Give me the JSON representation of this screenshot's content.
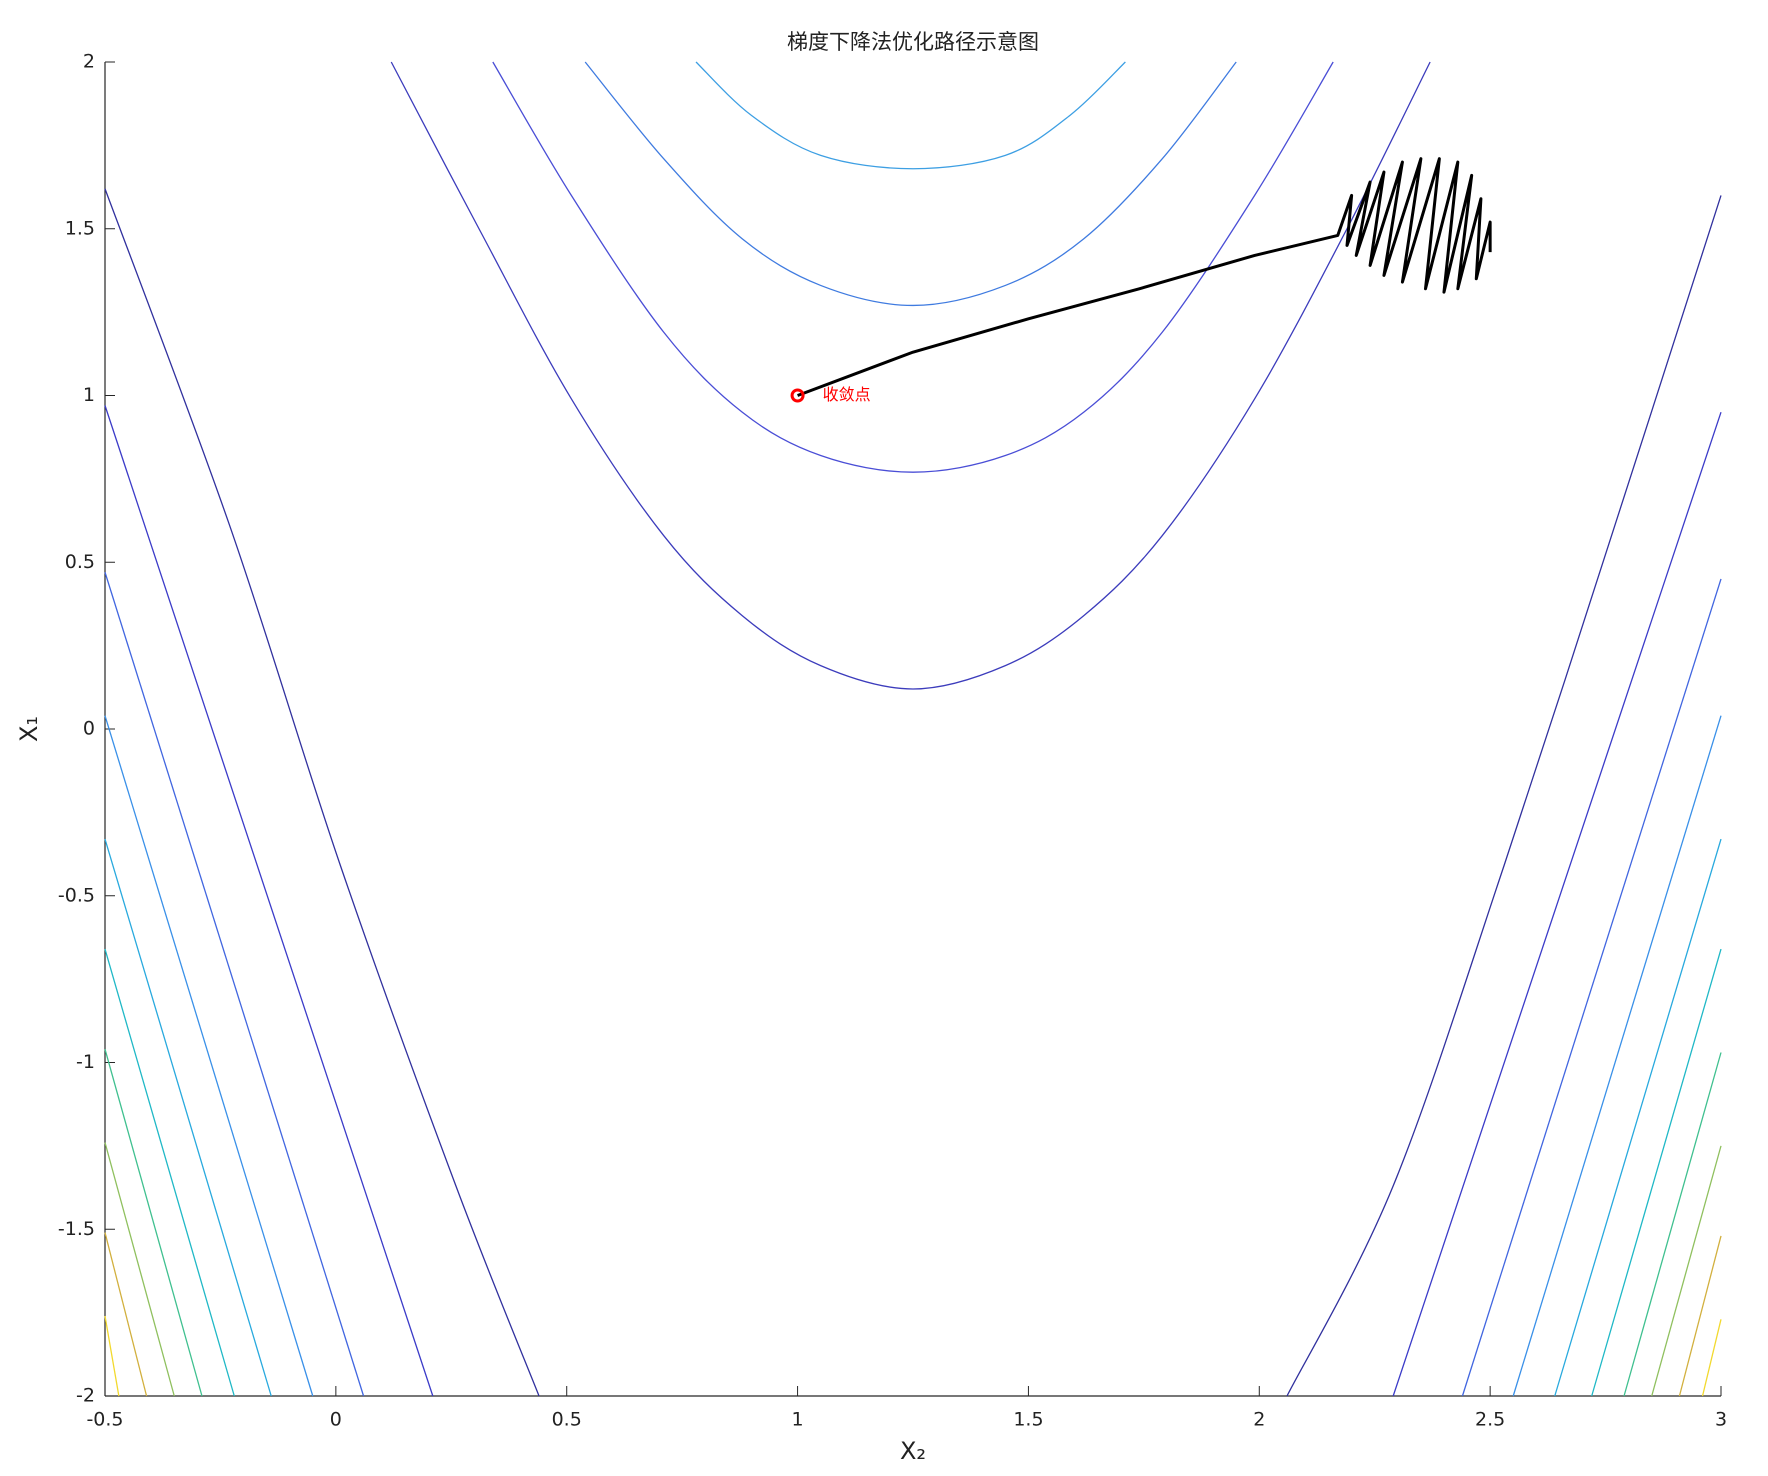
{
  "chart_data": {
    "type": "contour",
    "title": "梯度下降法优化路径示意图",
    "xlabel": "X₂",
    "ylabel": "X₁",
    "xlim": [
      -0.5,
      3
    ],
    "ylim": [
      -2,
      2
    ],
    "xticks": [
      -0.5,
      0,
      0.5,
      1,
      1.5,
      2,
      2.5,
      3
    ],
    "yticks": [
      -2,
      -1.5,
      -1,
      -0.5,
      0,
      0.5,
      1,
      1.5,
      2
    ],
    "contours": [
      {
        "color": "#3d9fe3",
        "x": [
          0.78,
          0.9,
          1.05,
          1.25,
          1.45,
          1.59,
          1.71
        ],
        "y": [
          2,
          1.84,
          1.72,
          1.68,
          1.72,
          1.84,
          2
        ]
      },
      {
        "color": "#3f7be0",
        "x": [
          0.54,
          0.71,
          0.88,
          1.05,
          1.25,
          1.45,
          1.62,
          1.79,
          1.95
        ],
        "y": [
          2,
          1.71,
          1.47,
          1.33,
          1.27,
          1.33,
          1.47,
          1.71,
          2
        ]
      },
      {
        "color": "#4a4ed6",
        "x": [
          0.34,
          0.51,
          0.71,
          0.88,
          1.05,
          1.25,
          1.45,
          1.62,
          1.79,
          1.99,
          2.16
        ],
        "y": [
          2,
          1.6,
          1.19,
          0.95,
          0.82,
          0.77,
          0.82,
          0.95,
          1.19,
          1.6,
          2
        ]
      },
      {
        "color": "#3c3cbc",
        "x": [
          0.12,
          0.31,
          0.51,
          0.71,
          0.88,
          1.05,
          1.25,
          1.45,
          1.62,
          1.79,
          1.99,
          2.19,
          2.37
        ],
        "y": [
          2,
          1.5,
          0.99,
          0.58,
          0.34,
          0.19,
          0.12,
          0.19,
          0.34,
          0.58,
          0.99,
          1.5,
          2
        ]
      },
      {
        "color": "#31319e",
        "x": [
          -0.5,
          -0.23,
          0.01,
          0.26,
          0.44
        ],
        "y": [
          1.62,
          0.61,
          -0.41,
          -1.37,
          -2
        ]
      },
      {
        "color": "#3b3bc8",
        "x": [
          -0.5,
          0.21
        ],
        "y": [
          0.97,
          -2
        ]
      },
      {
        "color": "#4166e0",
        "x": [
          -0.5,
          0.06
        ],
        "y": [
          0.47,
          -2
        ]
      },
      {
        "color": "#3a90e8",
        "x": [
          -0.5,
          -0.05
        ],
        "y": [
          0.04,
          -2
        ]
      },
      {
        "color": "#28a9de",
        "x": [
          -0.5,
          -0.14
        ],
        "y": [
          -0.33,
          -2
        ]
      },
      {
        "color": "#1fb8c6",
        "x": [
          -0.5,
          -0.22
        ],
        "y": [
          -0.66,
          -2
        ]
      },
      {
        "color": "#3fc08f",
        "x": [
          -0.5,
          -0.29
        ],
        "y": [
          -0.96,
          -2
        ]
      },
      {
        "color": "#8fc05e",
        "x": [
          -0.5,
          -0.35
        ],
        "y": [
          -1.24,
          -2
        ]
      },
      {
        "color": "#d2b03e",
        "x": [
          -0.5,
          -0.41
        ],
        "y": [
          -1.51,
          -2
        ]
      },
      {
        "color": "#f2d92e",
        "x": [
          -0.5,
          -0.47
        ],
        "y": [
          -1.76,
          -2
        ]
      },
      {
        "color": "#31319e",
        "x": [
          2.06,
          2.29,
          2.53,
          2.77,
          3
        ],
        "y": [
          -2,
          -1.37,
          -0.41,
          0.61,
          1.6
        ]
      },
      {
        "color": "#3b3bc8",
        "x": [
          2.29,
          3
        ],
        "y": [
          -2,
          0.95
        ]
      },
      {
        "color": "#4166e0",
        "x": [
          2.44,
          3
        ],
        "y": [
          -2,
          0.45
        ]
      },
      {
        "color": "#3a90e8",
        "x": [
          2.55,
          3
        ],
        "y": [
          -2,
          0.04
        ]
      },
      {
        "color": "#28a9de",
        "x": [
          2.64,
          3
        ],
        "y": [
          -2,
          -0.33
        ]
      },
      {
        "color": "#1fb8c6",
        "x": [
          2.72,
          3
        ],
        "y": [
          -2,
          -0.66
        ]
      },
      {
        "color": "#3fc08f",
        "x": [
          2.79,
          3
        ],
        "y": [
          -2,
          -0.97
        ]
      },
      {
        "color": "#8fc05e",
        "x": [
          2.85,
          3
        ],
        "y": [
          -2,
          -1.25
        ]
      },
      {
        "color": "#d2b03e",
        "x": [
          2.91,
          3
        ],
        "y": [
          -2,
          -1.52
        ]
      },
      {
        "color": "#f2d92e",
        "x": [
          2.96,
          3
        ],
        "y": [
          -2,
          -1.77
        ]
      }
    ],
    "path": {
      "color": "#000000",
      "x": [
        1.0,
        1.25,
        1.5,
        1.74,
        1.99,
        2.17,
        2.2,
        2.19,
        2.24,
        2.21,
        2.27,
        2.24,
        2.31,
        2.27,
        2.35,
        2.31,
        2.39,
        2.36,
        2.43,
        2.4,
        2.46,
        2.43,
        2.48,
        2.47,
        2.5,
        2.5
      ],
      "y": [
        1.0,
        1.13,
        1.23,
        1.32,
        1.42,
        1.48,
        1.6,
        1.45,
        1.64,
        1.42,
        1.67,
        1.39,
        1.7,
        1.36,
        1.71,
        1.34,
        1.71,
        1.32,
        1.7,
        1.31,
        1.66,
        1.32,
        1.59,
        1.35,
        1.52,
        1.43
      ]
    },
    "marker": {
      "x": 1,
      "y": 1,
      "color": "#ff0000",
      "label": "收敛点"
    }
  }
}
